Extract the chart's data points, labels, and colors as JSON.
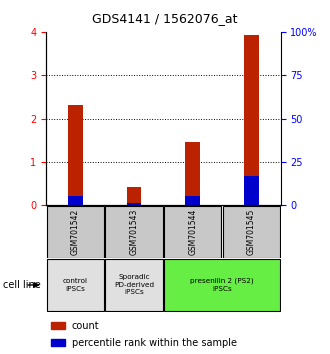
{
  "title": "GDS4141 / 1562076_at",
  "samples": [
    "GSM701542",
    "GSM701543",
    "GSM701544",
    "GSM701545"
  ],
  "red_values": [
    2.32,
    0.42,
    1.47,
    3.92
  ],
  "blue_values": [
    0.22,
    0.05,
    0.22,
    0.67
  ],
  "ylim_left": [
    0,
    4
  ],
  "ylim_right": [
    0,
    100
  ],
  "yticks_left": [
    0,
    1,
    2,
    3,
    4
  ],
  "yticks_right": [
    0,
    25,
    50,
    75,
    100
  ],
  "ytick_labels_right": [
    "0",
    "25",
    "50",
    "75",
    "100%"
  ],
  "bar_bg_color": "#c8c8c8",
  "bar_width": 0.25,
  "red_color": "#bb2200",
  "blue_color": "#0000cc",
  "cell_line_label": "cell line",
  "legend_red": "count",
  "legend_blue": "percentile rank within the sample",
  "group_info": [
    {
      "span": [
        0,
        0
      ],
      "label": "control\nIPSCs",
      "color": "#e0e0e0"
    },
    {
      "span": [
        1,
        1
      ],
      "label": "Sporadic\nPD-derived\niPSCs",
      "color": "#e0e0e0"
    },
    {
      "span": [
        2,
        3
      ],
      "label": "presenilin 2 (PS2)\niPSCs",
      "color": "#66ee44"
    }
  ]
}
